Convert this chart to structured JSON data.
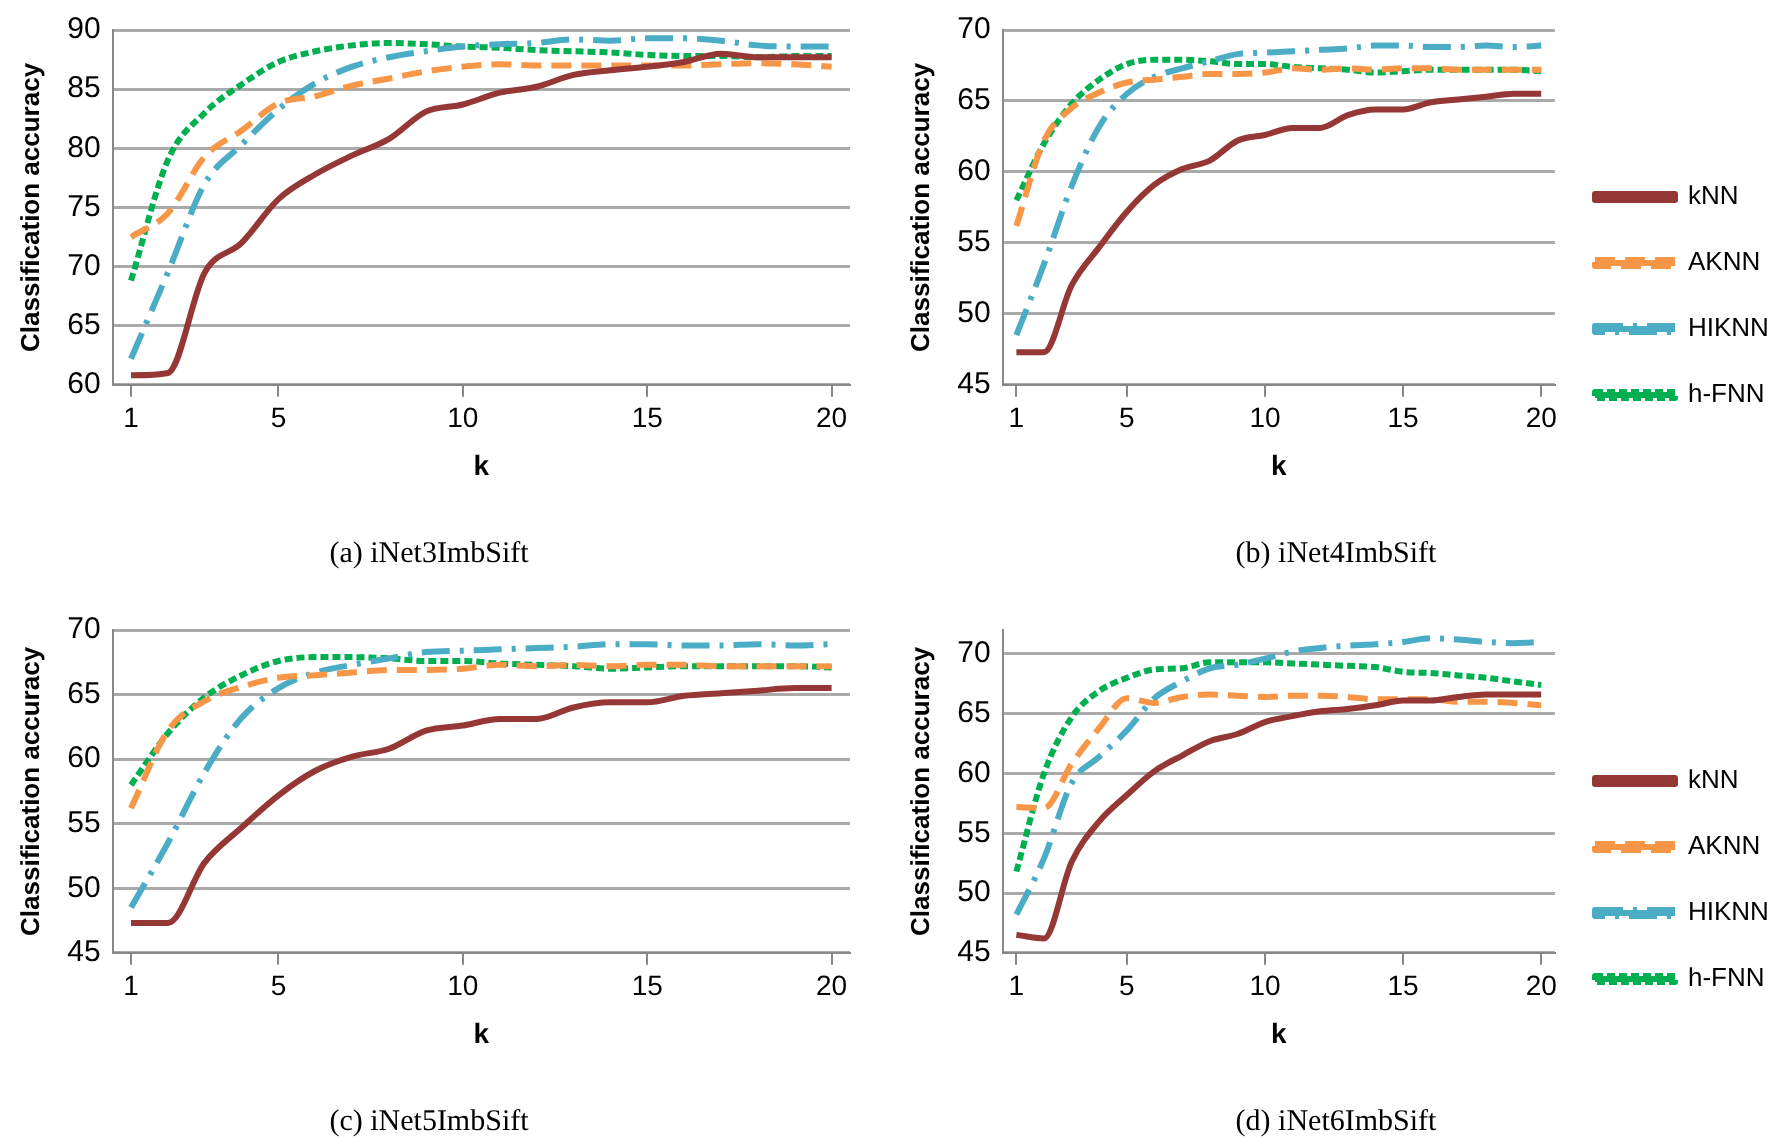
{
  "chart_data": [
    {
      "type": "line",
      "title": "(a) iNet3ImbSift",
      "xlabel": "k",
      "ylabel": "Classification accuracy",
      "x": [
        1,
        2,
        3,
        4,
        5,
        6,
        7,
        8,
        9,
        10,
        11,
        12,
        13,
        14,
        15,
        16,
        17,
        18,
        19,
        20
      ],
      "xlim": [
        0.5,
        20.5
      ],
      "xticks": [
        1,
        5,
        10,
        15,
        20
      ],
      "ylim": [
        60,
        90
      ],
      "yticks": [
        60,
        65,
        70,
        75,
        80,
        85,
        90
      ],
      "grid": "y",
      "legend": false,
      "series": [
        {
          "color": "#953735",
          "line_style": "solid",
          "values": [
            60.8,
            61,
            69.5,
            72,
            75.7,
            77.8,
            79.4,
            80.8,
            83.1,
            83.7,
            84.7,
            85.2,
            86.2,
            86.6,
            86.9,
            87.3,
            88,
            87.7,
            87.7,
            87.7
          ]
        },
        {
          "color": "#f79646",
          "line_style": "dashed",
          "values": [
            72.5,
            74.5,
            79.3,
            81.5,
            83.8,
            84.4,
            85.3,
            85.9,
            86.5,
            86.9,
            87.1,
            87,
            87,
            87,
            87,
            87,
            87.1,
            87.2,
            87.1,
            86.9
          ]
        },
        {
          "color": "#4bacc6",
          "line_style": "dashdot",
          "values": [
            62.2,
            69.5,
            77,
            80.3,
            83.3,
            85.5,
            86.9,
            87.7,
            88.2,
            88.6,
            88.8,
            88.9,
            89.2,
            89.1,
            89.3,
            89.3,
            89.1,
            88.7,
            88.6,
            88.6
          ]
        },
        {
          "color": "#00b050",
          "line_style": "dotted",
          "values": [
            68.8,
            79,
            83,
            85.4,
            87.3,
            88.2,
            88.7,
            88.9,
            88.8,
            88.6,
            88.5,
            88.3,
            88.2,
            88.1,
            87.9,
            87.8,
            87.8,
            87.7,
            87.8,
            87.8
          ]
        }
      ]
    },
    {
      "type": "line",
      "title": "(b) iNet4ImbSift",
      "xlabel": "k",
      "ylabel": "Classification accuracy",
      "x": [
        1,
        2,
        3,
        4,
        5,
        6,
        7,
        8,
        9,
        10,
        11,
        12,
        13,
        14,
        15,
        16,
        17,
        18,
        19,
        20
      ],
      "xlim": [
        0.5,
        20.5
      ],
      "xticks": [
        1,
        5,
        10,
        15,
        20
      ],
      "ylim": [
        45,
        70
      ],
      "yticks": [
        45,
        50,
        55,
        60,
        65,
        70
      ],
      "grid": "y",
      "legend": "right",
      "series": [
        {
          "name": "kNN",
          "color": "#953735",
          "line_style": "solid",
          "values": [
            47.3,
            47.3,
            52,
            54.7,
            57.2,
            59.1,
            60.2,
            60.8,
            62.2,
            62.6,
            63.1,
            63.1,
            64,
            64.4,
            64.4,
            64.9,
            65.1,
            65.3,
            65.5,
            65.5
          ]
        },
        {
          "name": "AKNN",
          "color": "#f79646",
          "line_style": "dashed",
          "values": [
            56.2,
            62.2,
            64.5,
            65.6,
            66.3,
            66.5,
            66.7,
            66.9,
            66.9,
            67,
            67.3,
            67.2,
            67.3,
            67.2,
            67.3,
            67.3,
            67.2,
            67.2,
            67.2,
            67.2
          ]
        },
        {
          "name": "HIKNN",
          "color": "#4bacc6",
          "line_style": "dashdot",
          "values": [
            48.5,
            53.5,
            59,
            63.2,
            65.5,
            66.7,
            67.3,
            67.8,
            68.3,
            68.4,
            68.5,
            68.6,
            68.7,
            68.9,
            68.9,
            68.8,
            68.8,
            68.9,
            68.8,
            68.9
          ]
        },
        {
          "name": "h-FNN",
          "color": "#00b050",
          "line_style": "dotted",
          "values": [
            58,
            62,
            64.8,
            66.5,
            67.6,
            67.9,
            67.9,
            67.8,
            67.6,
            67.6,
            67.4,
            67.3,
            67.2,
            67,
            67.1,
            67.2,
            67.2,
            67.2,
            67.2,
            67.1
          ]
        }
      ]
    },
    {
      "type": "line",
      "title": "(c) iNet5ImbSift",
      "xlabel": "k",
      "ylabel": "Classification accuracy",
      "x": [
        1,
        2,
        3,
        4,
        5,
        6,
        7,
        8,
        9,
        10,
        11,
        12,
        13,
        14,
        15,
        16,
        17,
        18,
        19,
        20
      ],
      "xlim": [
        0.5,
        20.5
      ],
      "xticks": [
        1,
        5,
        10,
        15,
        20
      ],
      "ylim": [
        45,
        70
      ],
      "yticks": [
        45,
        50,
        55,
        60,
        65,
        70
      ],
      "grid": "y",
      "legend": false,
      "series": [
        {
          "color": "#953735",
          "line_style": "solid",
          "values": [
            47.3,
            47.3,
            52,
            54.7,
            57.2,
            59.1,
            60.2,
            60.8,
            62.2,
            62.6,
            63.1,
            63.1,
            64,
            64.4,
            64.4,
            64.9,
            65.1,
            65.3,
            65.5,
            65.5
          ]
        },
        {
          "color": "#f79646",
          "line_style": "dashed",
          "values": [
            56.2,
            62.2,
            64.5,
            65.6,
            66.3,
            66.5,
            66.7,
            66.9,
            66.9,
            67,
            67.3,
            67.2,
            67.3,
            67.2,
            67.3,
            67.3,
            67.2,
            67.2,
            67.2,
            67.2
          ]
        },
        {
          "color": "#4bacc6",
          "line_style": "dashdot",
          "values": [
            48.5,
            53.5,
            59,
            63.2,
            65.5,
            66.7,
            67.3,
            67.8,
            68.3,
            68.4,
            68.5,
            68.6,
            68.7,
            68.9,
            68.9,
            68.8,
            68.8,
            68.9,
            68.8,
            68.9
          ]
        },
        {
          "color": "#00b050",
          "line_style": "dotted",
          "values": [
            58,
            62,
            64.8,
            66.5,
            67.6,
            67.9,
            67.9,
            67.8,
            67.6,
            67.6,
            67.4,
            67.3,
            67.2,
            67,
            67.1,
            67.2,
            67.2,
            67.2,
            67.2,
            67.1
          ]
        }
      ]
    },
    {
      "type": "line",
      "title": "(d) iNet6ImbSift",
      "xlabel": "k",
      "ylabel": "Classification accuracy",
      "x": [
        1,
        2,
        3,
        4,
        5,
        6,
        7,
        8,
        9,
        10,
        11,
        12,
        13,
        14,
        15,
        16,
        17,
        18,
        19,
        20
      ],
      "xlim": [
        0.5,
        20.5
      ],
      "xticks": [
        1,
        5,
        10,
        15,
        20
      ],
      "ylim": [
        45,
        72
      ],
      "yticks": [
        45,
        50,
        55,
        60,
        65,
        70
      ],
      "grid": "y",
      "legend": "right",
      "series": [
        {
          "name": "kNN",
          "color": "#953735",
          "line_style": "solid",
          "values": [
            46.5,
            46.2,
            52.6,
            56,
            58.2,
            60.2,
            61.5,
            62.7,
            63.3,
            64.3,
            64.8,
            65.2,
            65.4,
            65.7,
            66.1,
            66.1,
            66.4,
            66.6,
            66.6,
            66.6
          ]
        },
        {
          "name": "AKNN",
          "color": "#f79646",
          "line_style": "dashed",
          "values": [
            57.2,
            57.1,
            60.8,
            63.8,
            66.3,
            65.9,
            66.4,
            66.6,
            66.5,
            66.4,
            66.5,
            66.5,
            66.4,
            66.2,
            66.2,
            66.2,
            66,
            66,
            65.9,
            65.7
          ]
        },
        {
          "name": "HIKNN",
          "color": "#4bacc6",
          "line_style": "dashdot",
          "values": [
            48.2,
            52.9,
            59.2,
            61.4,
            63.6,
            66.3,
            67.7,
            68.8,
            69.1,
            69.6,
            70.2,
            70.5,
            70.7,
            70.8,
            71,
            71.3,
            71.2,
            71,
            70.9,
            71
          ]
        },
        {
          "name": "h-FNN",
          "color": "#00b050",
          "line_style": "dotted",
          "values": [
            51.8,
            60,
            64.7,
            66.9,
            68,
            68.7,
            68.8,
            69.3,
            69.3,
            69.3,
            69.2,
            69.1,
            69,
            68.9,
            68.5,
            68.4,
            68.2,
            68,
            67.7,
            67.4
          ]
        }
      ]
    }
  ]
}
